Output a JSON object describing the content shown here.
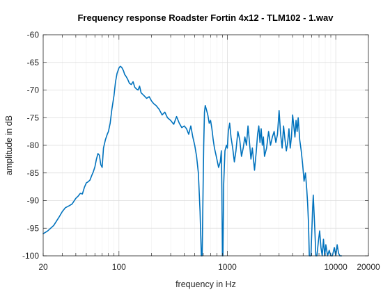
{
  "chart_data": {
    "type": "line",
    "title": "Frequency response Roadster Fortin 4x12 - TLM102 - 1.wav",
    "xlabel": "frequency in Hz",
    "ylabel": "amplitude in dB",
    "x_scale": "log",
    "xlim": [
      20,
      20000
    ],
    "ylim": [
      -100,
      -60
    ],
    "x_ticks": [
      20,
      100,
      1000,
      10000,
      20000
    ],
    "x_tick_labels": [
      "20",
      "100",
      "1000",
      "10000",
      "20000"
    ],
    "y_ticks": [
      -100,
      -95,
      -90,
      -85,
      -80,
      -75,
      -70,
      -65,
      -60
    ],
    "y_tick_labels": [
      "-100",
      "-95",
      "-90",
      "-85",
      "-80",
      "-75",
      "-70",
      "-65",
      "-60"
    ],
    "grid": true,
    "series": [
      {
        "color": "#0072BD",
        "points": [
          [
            20,
            -96.0
          ],
          [
            22,
            -95.5
          ],
          [
            25,
            -94.5
          ],
          [
            28,
            -93.0
          ],
          [
            30,
            -92.0
          ],
          [
            32,
            -91.3
          ],
          [
            35,
            -90.9
          ],
          [
            37,
            -90.6
          ],
          [
            40,
            -89.6
          ],
          [
            42,
            -89.2
          ],
          [
            44,
            -88.7
          ],
          [
            46,
            -88.8
          ],
          [
            48,
            -87.6
          ],
          [
            50,
            -86.8
          ],
          [
            52,
            -86.6
          ],
          [
            54,
            -86.3
          ],
          [
            56,
            -85.5
          ],
          [
            58,
            -84.8
          ],
          [
            60,
            -83.9
          ],
          [
            62,
            -82.5
          ],
          [
            64,
            -81.5
          ],
          [
            66,
            -81.8
          ],
          [
            68,
            -83.5
          ],
          [
            70,
            -84.0
          ],
          [
            72,
            -80.5
          ],
          [
            75,
            -79.0
          ],
          [
            78,
            -78.0
          ],
          [
            80,
            -77.5
          ],
          [
            83,
            -76.0
          ],
          [
            86,
            -73.5
          ],
          [
            90,
            -71.0
          ],
          [
            93,
            -68.5
          ],
          [
            96,
            -67.0
          ],
          [
            100,
            -66.0
          ],
          [
            103,
            -65.7
          ],
          [
            106,
            -65.9
          ],
          [
            110,
            -66.5
          ],
          [
            113,
            -67.2
          ],
          [
            116,
            -67.5
          ],
          [
            120,
            -68.0
          ],
          [
            125,
            -68.8
          ],
          [
            130,
            -69.0
          ],
          [
            135,
            -68.5
          ],
          [
            140,
            -69.5
          ],
          [
            145,
            -69.8
          ],
          [
            150,
            -70.0
          ],
          [
            155,
            -69.3
          ],
          [
            160,
            -70.5
          ],
          [
            170,
            -71.0
          ],
          [
            180,
            -71.5
          ],
          [
            190,
            -71.2
          ],
          [
            200,
            -72.0
          ],
          [
            210,
            -72.5
          ],
          [
            220,
            -72.8
          ],
          [
            235,
            -73.5
          ],
          [
            250,
            -74.5
          ],
          [
            265,
            -74.0
          ],
          [
            280,
            -75.0
          ],
          [
            300,
            -75.5
          ],
          [
            320,
            -76.2
          ],
          [
            340,
            -74.8
          ],
          [
            360,
            -76.0
          ],
          [
            380,
            -76.8
          ],
          [
            400,
            -76.5
          ],
          [
            420,
            -77.0
          ],
          [
            440,
            -78.0
          ],
          [
            460,
            -76.5
          ],
          [
            480,
            -78.5
          ],
          [
            500,
            -80.0
          ],
          [
            520,
            -82.0
          ],
          [
            540,
            -85.0
          ],
          [
            560,
            -92.0
          ],
          [
            575,
            -100.0
          ],
          [
            585,
            -100.0
          ],
          [
            595,
            -90.0
          ],
          [
            605,
            -80.0
          ],
          [
            615,
            -74.0
          ],
          [
            625,
            -72.8
          ],
          [
            640,
            -73.5
          ],
          [
            660,
            -74.5
          ],
          [
            680,
            -76.0
          ],
          [
            700,
            -75.5
          ],
          [
            720,
            -77.0
          ],
          [
            740,
            -79.0
          ],
          [
            760,
            -80.5
          ],
          [
            780,
            -81.5
          ],
          [
            800,
            -82.5
          ],
          [
            830,
            -84.0
          ],
          [
            860,
            -83.0
          ],
          [
            880,
            -81.0
          ],
          [
            890,
            -88.0
          ],
          [
            900,
            -100.0
          ],
          [
            910,
            -100.0
          ],
          [
            925,
            -87.0
          ],
          [
            950,
            -81.0
          ],
          [
            980,
            -80.0
          ],
          [
            1000,
            -80.5
          ],
          [
            1020,
            -77.5
          ],
          [
            1050,
            -76.0
          ],
          [
            1080,
            -78.5
          ],
          [
            1120,
            -80.5
          ],
          [
            1160,
            -83.0
          ],
          [
            1200,
            -81.0
          ],
          [
            1250,
            -77.5
          ],
          [
            1300,
            -79.0
          ],
          [
            1350,
            -82.0
          ],
          [
            1400,
            -80.5
          ],
          [
            1450,
            -78.5
          ],
          [
            1500,
            -80.0
          ],
          [
            1550,
            -76.5
          ],
          [
            1600,
            -79.5
          ],
          [
            1650,
            -82.5
          ],
          [
            1700,
            -80.5
          ],
          [
            1780,
            -84.5
          ],
          [
            1850,
            -81.0
          ],
          [
            1900,
            -78.0
          ],
          [
            1950,
            -76.5
          ],
          [
            2000,
            -79.5
          ],
          [
            2050,
            -77.0
          ],
          [
            2100,
            -80.0
          ],
          [
            2150,
            -78.5
          ],
          [
            2200,
            -82.0
          ],
          [
            2300,
            -80.5
          ],
          [
            2400,
            -77.5
          ],
          [
            2500,
            -80.0
          ],
          [
            2600,
            -78.5
          ],
          [
            2700,
            -77.5
          ],
          [
            2800,
            -79.5
          ],
          [
            2900,
            -78.0
          ],
          [
            3000,
            -73.7
          ],
          [
            3100,
            -78.0
          ],
          [
            3200,
            -80.5
          ],
          [
            3300,
            -76.5
          ],
          [
            3400,
            -79.0
          ],
          [
            3500,
            -81.0
          ],
          [
            3600,
            -79.5
          ],
          [
            3700,
            -77.0
          ],
          [
            3800,
            -80.5
          ],
          [
            3900,
            -78.5
          ],
          [
            4000,
            -74.5
          ],
          [
            4100,
            -76.5
          ],
          [
            4200,
            -78.5
          ],
          [
            4300,
            -75.5
          ],
          [
            4400,
            -77.5
          ],
          [
            4500,
            -75.0
          ],
          [
            4650,
            -79.0
          ],
          [
            4800,
            -81.0
          ],
          [
            4950,
            -83.5
          ],
          [
            5100,
            -86.5
          ],
          [
            5250,
            -85.0
          ],
          [
            5400,
            -88.0
          ],
          [
            5500,
            -90.5
          ],
          [
            5600,
            -94.0
          ],
          [
            5700,
            -100.0
          ],
          [
            5900,
            -100.0
          ],
          [
            6100,
            -92.0
          ],
          [
            6200,
            -89.0
          ],
          [
            6400,
            -95.0
          ],
          [
            6550,
            -100.0
          ],
          [
            6700,
            -100.0
          ],
          [
            6900,
            -97.5
          ],
          [
            7100,
            -95.5
          ],
          [
            7300,
            -98.5
          ],
          [
            7500,
            -100.0
          ],
          [
            7700,
            -97.0
          ],
          [
            7900,
            -100.0
          ],
          [
            8100,
            -98.0
          ],
          [
            8400,
            -100.0
          ],
          [
            8700,
            -99.0
          ],
          [
            9000,
            -100.0
          ],
          [
            9300,
            -100.0
          ],
          [
            9700,
            -98.5
          ],
          [
            10000,
            -100.0
          ],
          [
            10300,
            -98.0
          ],
          [
            10600,
            -99.5
          ],
          [
            10900,
            -100.0
          ],
          [
            11300,
            -100.0
          ]
        ]
      }
    ]
  }
}
